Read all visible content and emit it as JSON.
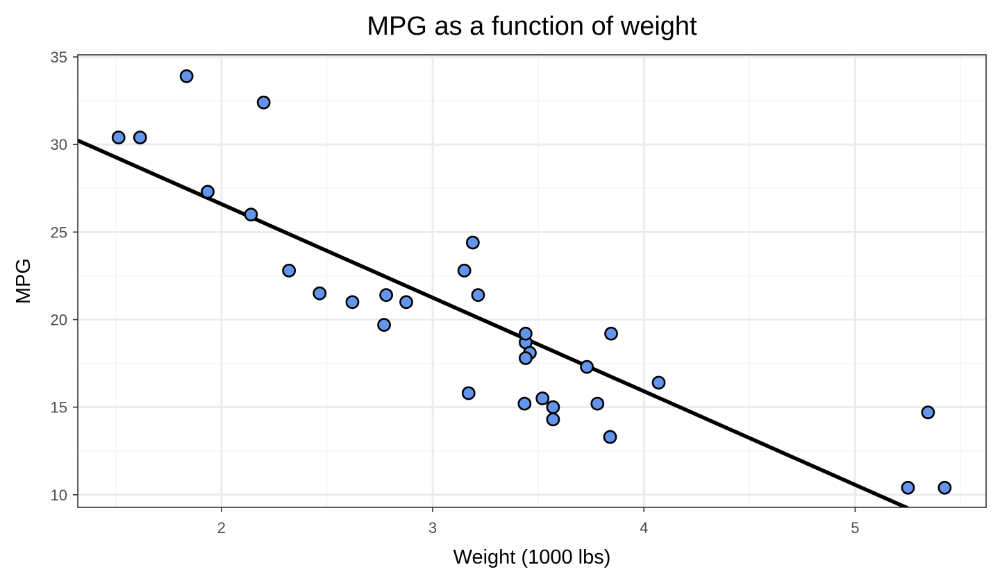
{
  "chart_data": {
    "type": "scatter",
    "title": "MPG as a function of weight",
    "xlabel": "Weight (1000 lbs)",
    "ylabel": "MPG",
    "xlim": [
      1.32,
      5.62
    ],
    "ylim": [
      9.28,
      35.12
    ],
    "x_ticks": [
      2,
      3,
      4,
      5
    ],
    "x_tick_labels": [
      "2",
      "3",
      "4",
      "5"
    ],
    "y_ticks": [
      10,
      15,
      20,
      25,
      30,
      35
    ],
    "y_tick_labels": [
      "10",
      "15",
      "20",
      "25",
      "30",
      "35"
    ],
    "grid": true,
    "legend": "none",
    "colors": {
      "point_fill": "#6495ed",
      "point_stroke": "#000000",
      "line": "#000000",
      "grid_major": "#ebebeb",
      "grid_minor": "#f4f4f4",
      "panel_border": "#333333"
    },
    "points": [
      {
        "x": 2.62,
        "y": 21.0
      },
      {
        "x": 2.875,
        "y": 21.0
      },
      {
        "x": 2.32,
        "y": 22.8
      },
      {
        "x": 3.215,
        "y": 21.4
      },
      {
        "x": 3.44,
        "y": 18.7
      },
      {
        "x": 3.46,
        "y": 18.1
      },
      {
        "x": 3.57,
        "y": 14.3
      },
      {
        "x": 3.19,
        "y": 24.4
      },
      {
        "x": 3.15,
        "y": 22.8
      },
      {
        "x": 3.44,
        "y": 19.2
      },
      {
        "x": 3.44,
        "y": 17.8
      },
      {
        "x": 4.07,
        "y": 16.4
      },
      {
        "x": 3.73,
        "y": 17.3
      },
      {
        "x": 3.78,
        "y": 15.2
      },
      {
        "x": 5.25,
        "y": 10.4
      },
      {
        "x": 5.424,
        "y": 10.4
      },
      {
        "x": 5.345,
        "y": 14.7
      },
      {
        "x": 2.2,
        "y": 32.4
      },
      {
        "x": 1.615,
        "y": 30.4
      },
      {
        "x": 1.835,
        "y": 33.9
      },
      {
        "x": 2.465,
        "y": 21.5
      },
      {
        "x": 3.52,
        "y": 15.5
      },
      {
        "x": 3.435,
        "y": 15.2
      },
      {
        "x": 3.84,
        "y": 13.3
      },
      {
        "x": 3.845,
        "y": 19.2
      },
      {
        "x": 1.935,
        "y": 27.3
      },
      {
        "x": 2.14,
        "y": 26.0
      },
      {
        "x": 1.513,
        "y": 30.4
      },
      {
        "x": 3.17,
        "y": 15.8
      },
      {
        "x": 2.77,
        "y": 19.7
      },
      {
        "x": 3.57,
        "y": 15.0
      },
      {
        "x": 2.78,
        "y": 21.4
      }
    ],
    "fit_line": {
      "method": "linear",
      "intercept": 37.285,
      "slope": -5.344
    }
  }
}
